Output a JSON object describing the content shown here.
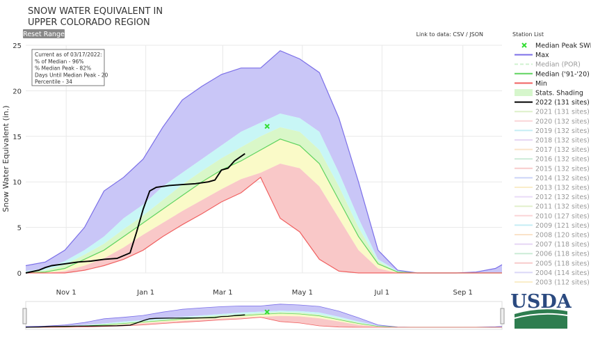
{
  "title": [
    "SNOW WATER EQUIVALENT IN",
    "UPPER COLORADO REGION"
  ],
  "ui": {
    "reset_button": "Reset Range",
    "data_link": "Link to data: CSV / JSON",
    "station_list": "Station List",
    "logo": "USDA"
  },
  "chart_data": {
    "type": "line",
    "y_label": "Snow Water Equivalent (in.)",
    "x": [
      0,
      15,
      30,
      45,
      60,
      75,
      90,
      105,
      120,
      135,
      150,
      165,
      180,
      195,
      210,
      225,
      240,
      255,
      270,
      285,
      300,
      315,
      330,
      345,
      360,
      365
    ],
    "xlim": [
      0,
      365
    ],
    "xticks": [
      {
        "value": 31,
        "label": "Nov 1"
      },
      {
        "value": 92,
        "label": "Jan 1"
      },
      {
        "value": 151,
        "label": "Mar 1"
      },
      {
        "value": 212,
        "label": "May 1"
      },
      {
        "value": 273,
        "label": "Jul 1"
      },
      {
        "value": 335,
        "label": "Sep 1"
      }
    ],
    "ylim": [
      0,
      25
    ],
    "yticks": [
      0,
      5,
      10,
      15,
      20,
      25
    ],
    "grid": true,
    "annotation": [
      "Current as of 03/17/2022:",
      "% of Median - 96%",
      "% Median Peak - 82%",
      "Days Until Median Peak - 20",
      "Percentile - 34"
    ],
    "series": [
      {
        "name": "Median Peak SWE",
        "mode": "marker",
        "color": "#33dd33",
        "x": [
          185
        ],
        "values": [
          16.1
        ]
      },
      {
        "name": "Max",
        "mode": "line",
        "color": "#7b6fe8",
        "values": [
          0.8,
          1.2,
          2.5,
          5,
          9,
          10.5,
          12.5,
          16,
          19,
          20.5,
          21.8,
          22.5,
          22.5,
          24.4,
          23.5,
          22,
          17,
          10,
          2.5,
          0.3,
          0,
          0,
          0,
          0.1,
          0.5,
          0.9
        ]
      },
      {
        "name": "Median (POR)",
        "mode": "dash",
        "color": "#9be39b",
        "visible": false
      },
      {
        "name": "Median ('91-'20)",
        "mode": "line",
        "color": "#5fd35f",
        "values": [
          0,
          0.1,
          0.5,
          1.5,
          2.5,
          4,
          5.5,
          7,
          8.5,
          10,
          11.3,
          12.3,
          13.5,
          14.7,
          14,
          12,
          8,
          4,
          1,
          0.1,
          0,
          0,
          0,
          0,
          0,
          0
        ]
      },
      {
        "name": "Min",
        "mode": "line",
        "color": "#f06060",
        "values": [
          0,
          0,
          0,
          0.3,
          0.8,
          1.5,
          2.5,
          4,
          5.3,
          6.5,
          7.8,
          8.8,
          10.5,
          6,
          4.5,
          1.5,
          0.2,
          0,
          0,
          0,
          0,
          0,
          0,
          0,
          0,
          0
        ]
      },
      {
        "name": "Stats. Shading",
        "mode": "fill",
        "color": "#d6f6cc",
        "band_colors": [
          "#c9c6f7",
          "#c8f6f6",
          "#d9f7c8",
          "#fafac8",
          "#f9c8c8"
        ],
        "levels": [
          {
            "values": [
              0.2,
              0.5,
              1.3,
              2.5,
              4,
              6,
              7.5,
              9.5,
              11,
              12.5,
              14,
              15.5,
              16.5,
              17.5,
              17,
              15.5,
              11,
              6,
              1.5,
              0.2,
              0,
              0,
              0,
              0,
              0,
              0
            ]
          },
          {
            "values": [
              0.1,
              0.3,
              0.9,
              2,
              3.2,
              4.8,
              6.3,
              8,
              9.7,
              11.2,
              12.6,
              13.8,
              15,
              16,
              15.5,
              13.5,
              9.5,
              5,
              1.3,
              0.1,
              0,
              0,
              0,
              0,
              0,
              0
            ]
          },
          {
            "values": [
              0,
              0,
              0.2,
              0.8,
              1.6,
              2.8,
              4.2,
              5.5,
              6.8,
              8,
              9.2,
              10.3,
              11,
              12,
              11.5,
              9.5,
              6,
              2.5,
              0.5,
              0,
              0,
              0,
              0,
              0,
              0,
              0
            ]
          }
        ]
      },
      {
        "name": "2022 (131 sites)",
        "mode": "line",
        "color": "#000000",
        "x": [
          0,
          10,
          15,
          20,
          30,
          40,
          50,
          60,
          70,
          80,
          85,
          90,
          95,
          100,
          110,
          120,
          130,
          140,
          145,
          150,
          155,
          160,
          168
        ],
        "values": [
          0,
          0.3,
          0.6,
          0.8,
          1,
          1.2,
          1.3,
          1.5,
          1.6,
          2.2,
          4.5,
          7,
          9,
          9.4,
          9.6,
          9.7,
          9.8,
          10,
          10.2,
          11.3,
          11.5,
          12.3,
          13.1
        ]
      },
      {
        "name": "2021 (131 sites)",
        "mode": "line",
        "color": "#b5e08a",
        "visible": false
      },
      {
        "name": "2020 (132 sites)",
        "mode": "line",
        "color": "#f4a3a8",
        "visible": false
      },
      {
        "name": "2019 (132 sites)",
        "mode": "line",
        "color": "#7fd9e8",
        "visible": false
      },
      {
        "name": "2018 (132 sites)",
        "mode": "line",
        "color": "#c9a5e8",
        "visible": false
      },
      {
        "name": "2017 (132 sites)",
        "mode": "line",
        "color": "#f5c28a",
        "visible": false
      },
      {
        "name": "2016 (132 sites)",
        "mode": "line",
        "color": "#8fd6a8",
        "visible": false
      },
      {
        "name": "2015 (132 sites)",
        "mode": "line",
        "color": "#f09090",
        "visible": false
      },
      {
        "name": "2014 (132 sites)",
        "mode": "line",
        "color": "#8f9ff0",
        "visible": false
      },
      {
        "name": "2013 (132 sites)",
        "mode": "line",
        "color": "#f5d98a",
        "visible": false
      },
      {
        "name": "2012 (132 sites)",
        "mode": "line",
        "color": "#d0b0f0",
        "visible": false
      },
      {
        "name": "2011 (132 sites)",
        "mode": "line",
        "color": "#c0e090",
        "visible": false
      },
      {
        "name": "2010 (127 sites)",
        "mode": "line",
        "color": "#f4a3a8",
        "visible": false
      },
      {
        "name": "2009 (121 sites)",
        "mode": "line",
        "color": "#7fd9e8",
        "visible": false
      },
      {
        "name": "2008 (120 sites)",
        "mode": "line",
        "color": "#f5c28a",
        "visible": false
      },
      {
        "name": "2007 (118 sites)",
        "mode": "line",
        "color": "#c9a5e8",
        "visible": false
      },
      {
        "name": "2006 (118 sites)",
        "mode": "line",
        "color": "#8fd6a8",
        "visible": false
      },
      {
        "name": "2005 (118 sites)",
        "mode": "line",
        "color": "#f09090",
        "visible": false
      },
      {
        "name": "2004 (114 sites)",
        "mode": "line",
        "color": "#b0a8f0",
        "visible": false
      },
      {
        "name": "2003 (112 sites)",
        "mode": "line",
        "color": "#f5d98a",
        "visible": false
      }
    ]
  }
}
